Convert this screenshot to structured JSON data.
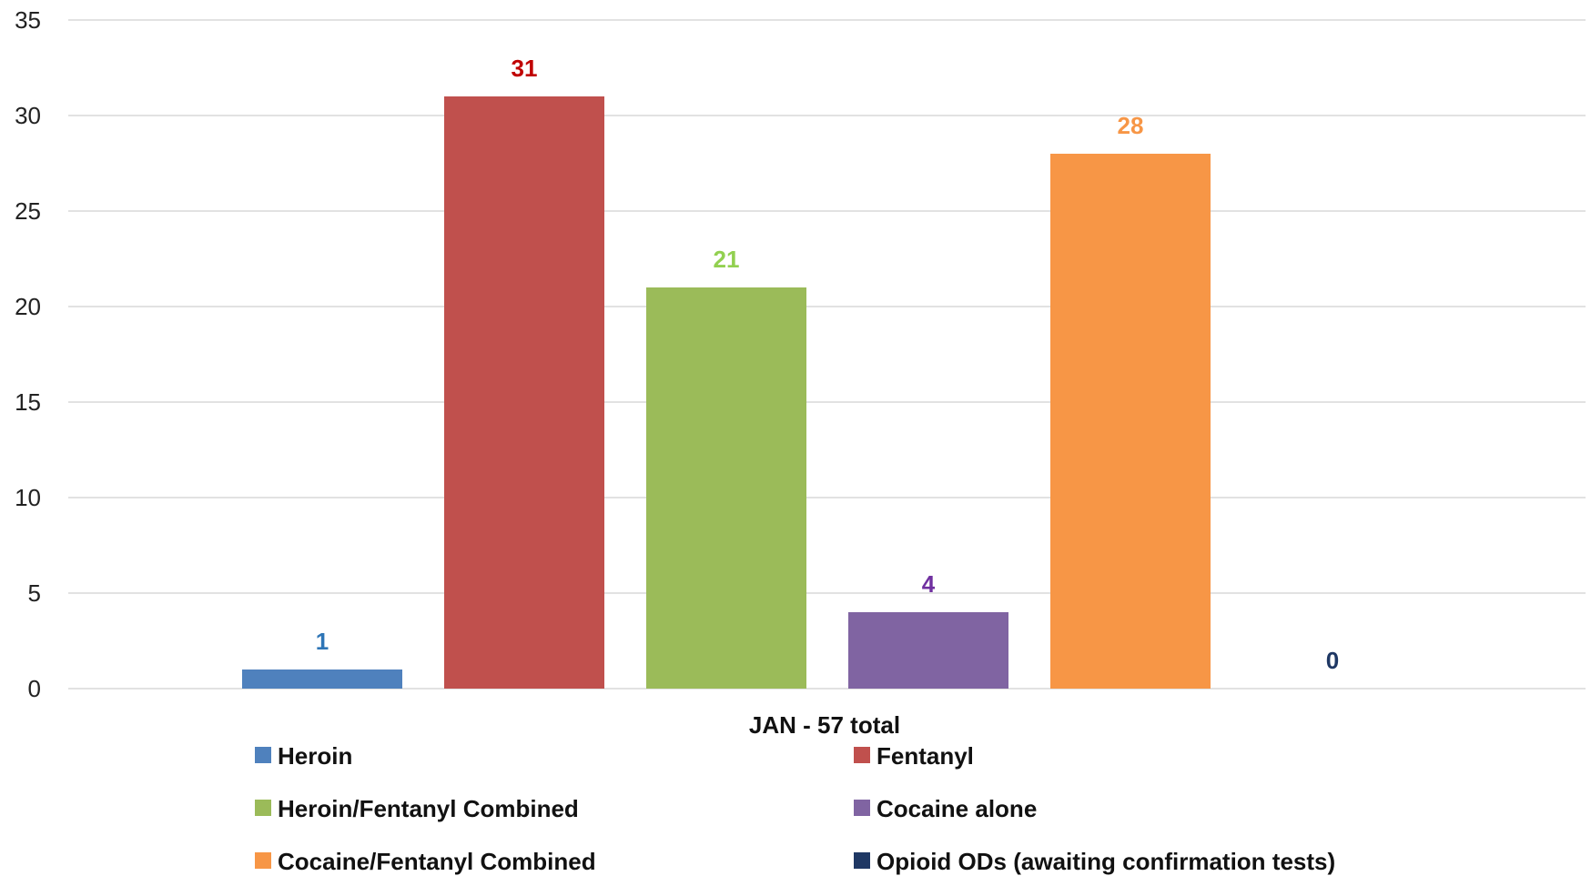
{
  "chart_data": {
    "type": "bar",
    "title": "",
    "xlabel": "",
    "ylabel": "",
    "categories": [
      "JAN - 57 total"
    ],
    "ylim": [
      0,
      35
    ],
    "yticks": [
      0,
      5,
      10,
      15,
      20,
      25,
      30,
      35
    ],
    "grid": true,
    "legend_position": "bottom",
    "series": [
      {
        "name": "Heroin",
        "values": [
          1
        ],
        "color": "#4f81bd",
        "label_color": "#2e75b6"
      },
      {
        "name": "Fentanyl",
        "values": [
          31
        ],
        "color": "#c0504d",
        "label_color": "#c00000"
      },
      {
        "name": "Heroin/Fentanyl Combined",
        "values": [
          21
        ],
        "color": "#9bbb59",
        "label_color": "#92d050"
      },
      {
        "name": "Cocaine alone",
        "values": [
          4
        ],
        "color": "#8064a2",
        "label_color": "#7030a0"
      },
      {
        "name": "Cocaine/Fentanyl Combined",
        "values": [
          28
        ],
        "color": "#f79646",
        "label_color": "#f79646"
      },
      {
        "name": "Opioid ODs (awaiting confirmation tests)",
        "values": [
          0
        ],
        "color": "#1f3864",
        "label_color": "#1f3864"
      }
    ]
  }
}
